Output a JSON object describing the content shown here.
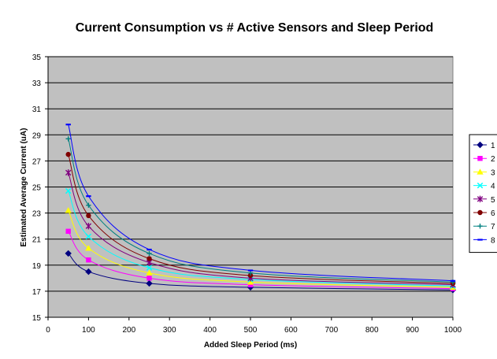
{
  "chart_data": {
    "type": "line",
    "title": "Current Consumption vs # Active Sensors and Sleep Period",
    "xlabel": "Added Sleep Period (ms)",
    "ylabel": "Estimated Average Current (uA)",
    "xlim": [
      0,
      1000
    ],
    "ylim": [
      15,
      35
    ],
    "xticks": [
      "0",
      "100",
      "200",
      "300",
      "400",
      "500",
      "600",
      "700",
      "800",
      "900",
      "1000"
    ],
    "yticks": [
      "15",
      "17",
      "19",
      "21",
      "23",
      "25",
      "27",
      "29",
      "31",
      "33",
      "35"
    ],
    "grid": true,
    "legend_position": "right",
    "plot_background": "#c0c0c0",
    "x": [
      50,
      100,
      250,
      500,
      1000
    ],
    "series": [
      {
        "name": "1",
        "color": "#000080",
        "marker": "diamond",
        "values": [
          19.9,
          18.5,
          17.6,
          17.3,
          17.1
        ]
      },
      {
        "name": "2",
        "color": "#ff00ff",
        "marker": "square",
        "values": [
          21.6,
          19.4,
          18.0,
          17.5,
          17.2
        ]
      },
      {
        "name": "3",
        "color": "#ffff00",
        "marker": "triangle",
        "values": [
          23.2,
          20.3,
          18.4,
          17.7,
          17.3
        ]
      },
      {
        "name": "4",
        "color": "#00ffff",
        "marker": "x",
        "values": [
          24.7,
          21.2,
          18.8,
          17.9,
          17.4
        ]
      },
      {
        "name": "5",
        "color": "#800080",
        "marker": "star",
        "values": [
          26.1,
          22.0,
          19.2,
          18.0,
          17.5
        ]
      },
      {
        "name": "6",
        "color": "#800000",
        "marker": "circle",
        "values": [
          27.5,
          22.8,
          19.5,
          18.2,
          17.6
        ]
      },
      {
        "name": "7",
        "color": "#008080",
        "marker": "plus",
        "values": [
          28.7,
          23.6,
          19.9,
          18.4,
          17.7
        ]
      },
      {
        "name": "8",
        "color": "#0000ff",
        "marker": "dash",
        "values": [
          29.8,
          24.3,
          20.2,
          18.6,
          17.8
        ]
      }
    ]
  }
}
